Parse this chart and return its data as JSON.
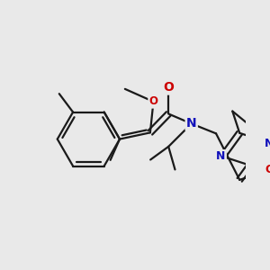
{
  "background_color": "#e9e9e9",
  "bond_color": "#1a1a1a",
  "bond_width": 1.6,
  "atom_colors": {
    "O": "#cc0000",
    "N": "#1111bb",
    "C": "#1a1a1a"
  },
  "figsize": [
    3.0,
    3.0
  ],
  "dpi": 100
}
